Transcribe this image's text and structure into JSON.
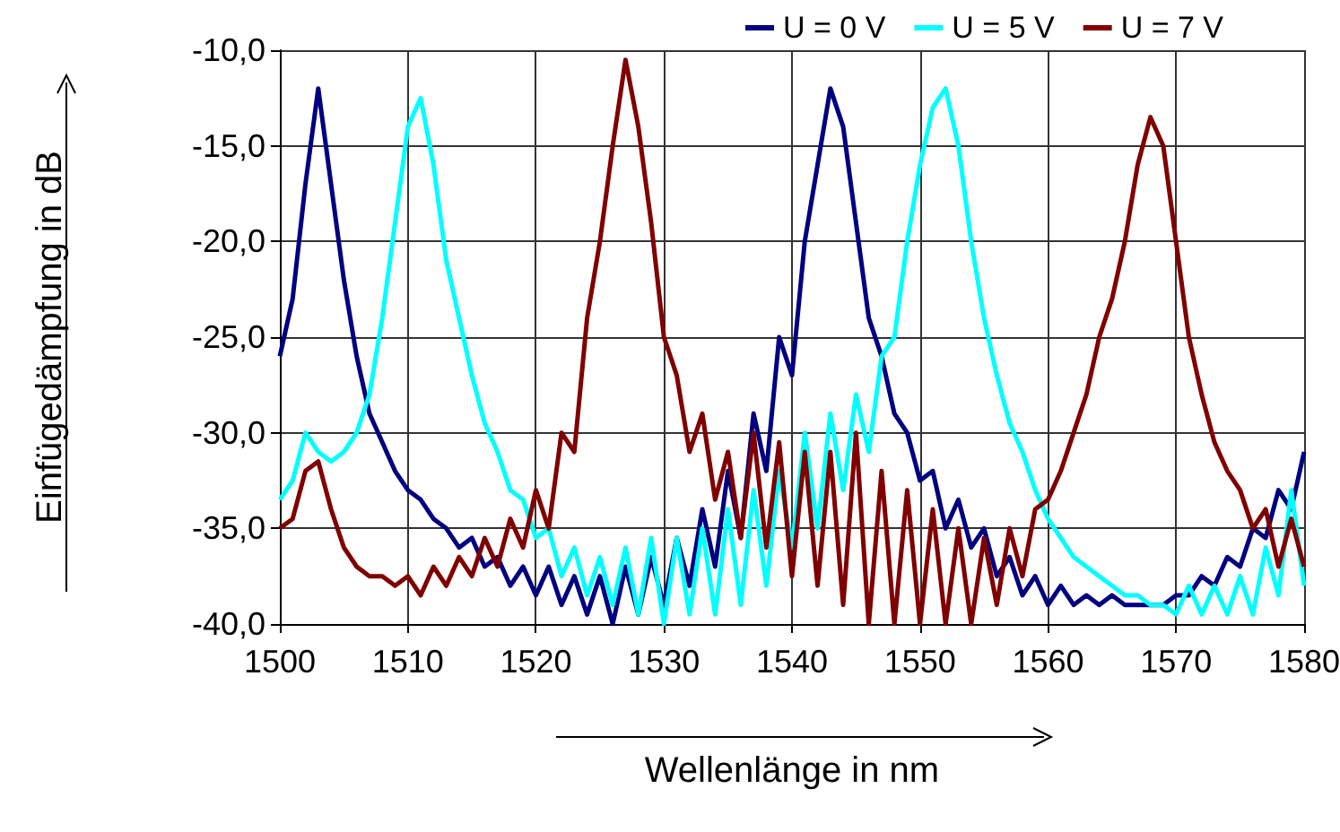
{
  "chart_data": {
    "type": "line",
    "xlabel": "Wellenlänge in nm",
    "ylabel": "Einfügedämpfung in dB",
    "x": [
      1500,
      1501,
      1502,
      1503,
      1504,
      1505,
      1506,
      1507,
      1508,
      1509,
      1510,
      1511,
      1512,
      1513,
      1514,
      1515,
      1516,
      1517,
      1518,
      1519,
      1520,
      1521,
      1522,
      1523,
      1524,
      1525,
      1526,
      1527,
      1528,
      1529,
      1530,
      1531,
      1532,
      1533,
      1534,
      1535,
      1536,
      1537,
      1538,
      1539,
      1540,
      1541,
      1542,
      1543,
      1544,
      1545,
      1546,
      1547,
      1548,
      1549,
      1550,
      1551,
      1552,
      1553,
      1554,
      1555,
      1556,
      1557,
      1558,
      1559,
      1560,
      1561,
      1562,
      1563,
      1564,
      1565,
      1566,
      1567,
      1568,
      1569,
      1570,
      1571,
      1572,
      1573,
      1574,
      1575,
      1576,
      1577,
      1578,
      1579,
      1580
    ],
    "series": [
      {
        "name": "U = 0 V",
        "color": "#000080",
        "values": [
          -26,
          -23,
          -17,
          -12,
          -17,
          -22,
          -26,
          -29,
          -30.5,
          -32,
          -33,
          -33.5,
          -34.5,
          -35,
          -36,
          -35.5,
          -37,
          -36.5,
          -38,
          -37,
          -38.5,
          -37,
          -39,
          -37.5,
          -39.5,
          -37.5,
          -40,
          -37,
          -39.5,
          -36.5,
          -39,
          -35.5,
          -38,
          -34,
          -37,
          -32,
          -35.5,
          -29,
          -32,
          -25,
          -27,
          -20,
          -16,
          -12,
          -14,
          -19,
          -24,
          -26,
          -29,
          -30,
          -32.5,
          -32,
          -35,
          -33.5,
          -36,
          -35,
          -37.5,
          -36.5,
          -38.5,
          -37.5,
          -39,
          -38,
          -39,
          -38.5,
          -39,
          -38.5,
          -39,
          -39,
          -39,
          -39,
          -38.5,
          -38.5,
          -37.5,
          -38,
          -36.5,
          -37,
          -35,
          -35.5,
          -33,
          -34,
          -31
        ]
      },
      {
        "name": "U = 5 V",
        "color": "#00ffff",
        "values": [
          -33.5,
          -32.5,
          -30,
          -31,
          -31.5,
          -31,
          -30,
          -28,
          -24,
          -19,
          -14,
          -12.5,
          -16,
          -21,
          -24,
          -27,
          -29.5,
          -31,
          -33,
          -33.5,
          -35.5,
          -35,
          -37.5,
          -36,
          -38.5,
          -36.5,
          -39,
          -36,
          -39.5,
          -35.5,
          -40,
          -35.5,
          -39.5,
          -35,
          -39.5,
          -34,
          -39,
          -33,
          -38,
          -32,
          -36,
          -30,
          -35,
          -29,
          -33,
          -28,
          -31,
          -26,
          -25,
          -20,
          -16,
          -13,
          -12,
          -15,
          -20,
          -24,
          -27,
          -29.5,
          -31,
          -33,
          -34.5,
          -35.5,
          -36.5,
          -37,
          -37.5,
          -38,
          -38.5,
          -38.5,
          -39,
          -39,
          -39.5,
          -38,
          -39.5,
          -38,
          -39.5,
          -37.5,
          -39.5,
          -36,
          -38.5,
          -33,
          -38
        ]
      },
      {
        "name": "U = 7 V",
        "color": "#800000",
        "values": [
          -35,
          -34.5,
          -32,
          -31.5,
          -34,
          -36,
          -37,
          -37.5,
          -37.5,
          -38,
          -37.5,
          -38.5,
          -37,
          -38,
          -36.5,
          -37.5,
          -35.5,
          -37,
          -34.5,
          -36,
          -33,
          -35,
          -30,
          -31,
          -24,
          -20,
          -15,
          -10.5,
          -14,
          -19,
          -25,
          -27,
          -31,
          -29,
          -33.5,
          -31,
          -35.5,
          -30,
          -36,
          -30.5,
          -37.5,
          -31,
          -38,
          -31,
          -39,
          -30,
          -40,
          -32,
          -40,
          -33,
          -40,
          -34,
          -40,
          -35,
          -40,
          -35.5,
          -39,
          -35,
          -37.5,
          -34,
          -33.5,
          -32,
          -30,
          -28,
          -25,
          -23,
          -20,
          -16,
          -13.5,
          -15,
          -20,
          -25,
          -28,
          -30.5,
          -32,
          -33,
          -35,
          -34,
          -37,
          -34.5,
          -37
        ]
      }
    ],
    "xlim": [
      1500,
      1580
    ],
    "xticks": [
      1500,
      1510,
      1520,
      1530,
      1540,
      1550,
      1560,
      1570,
      1580
    ],
    "ylim": [
      -40,
      -10
    ],
    "yticks": [
      {
        "value": -40,
        "label": "-40,0"
      },
      {
        "value": -35,
        "label": "-35,0"
      },
      {
        "value": -30,
        "label": "-30,0"
      },
      {
        "value": -25,
        "label": "-25,0"
      },
      {
        "value": -20,
        "label": "-20,0"
      },
      {
        "value": -15,
        "label": "-15,0"
      },
      {
        "value": -10,
        "label": "-10,0"
      }
    ],
    "grid": true,
    "legend": "top right",
    "marker": "none",
    "line_style": "solid"
  }
}
